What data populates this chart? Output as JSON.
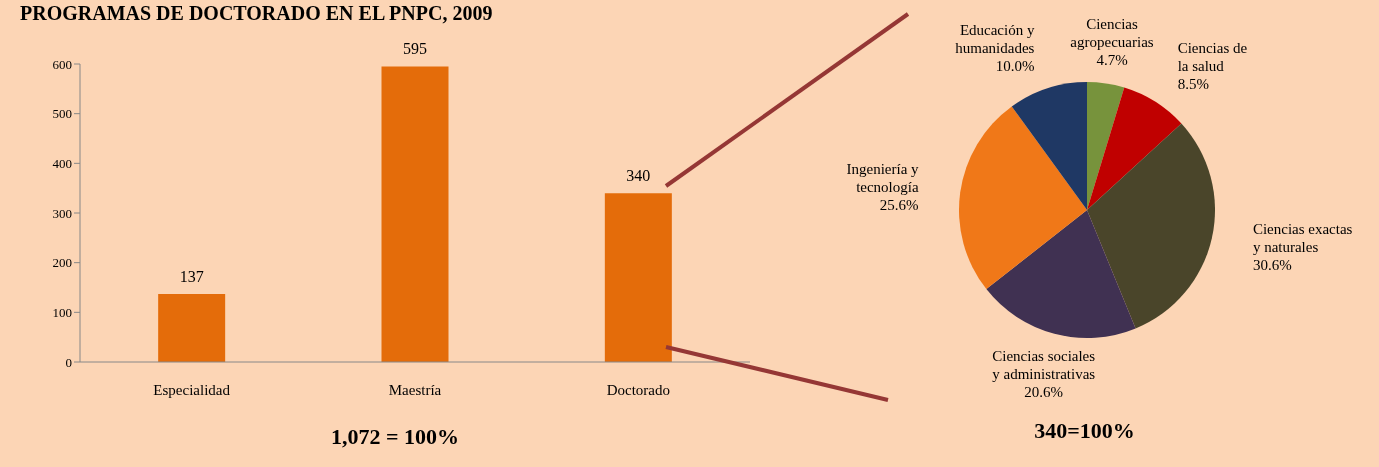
{
  "chart_data": [
    {
      "type": "bar",
      "title": "PROGRAMAS DE DOCTORADO EN EL PNPC, 2009",
      "categories": [
        "Especialidad",
        "Maestría",
        "Doctorado"
      ],
      "values": [
        137,
        595,
        340
      ],
      "color": "#e46c0a",
      "ylim": [
        0,
        600
      ],
      "yticks": [
        0,
        100,
        200,
        300,
        400,
        500,
        600
      ],
      "data_labels": true,
      "legend": false,
      "annotations": [
        "1,072 = 100%"
      ]
    },
    {
      "type": "pie",
      "categories": [
        "Ciencias agropecuarias",
        "Ciencias de la salud",
        "Ciencias exactas y naturales",
        "Ciencias sociales y administrativas",
        "Ingeniería y tecnología",
        "Educación y humanidades"
      ],
      "values": [
        4.7,
        8.5,
        30.6,
        20.6,
        25.6,
        10.0
      ],
      "colors": [
        "#77933c",
        "#c00000",
        "#4a452a",
        "#403152",
        "#f07818",
        "#1f3864"
      ],
      "value_labels": [
        "4.7%",
        "8.5%",
        "30.6%",
        "20.6%",
        "25.6%",
        "10.0%"
      ],
      "legend": false,
      "annotations": [
        "340=100%"
      ]
    }
  ]
}
